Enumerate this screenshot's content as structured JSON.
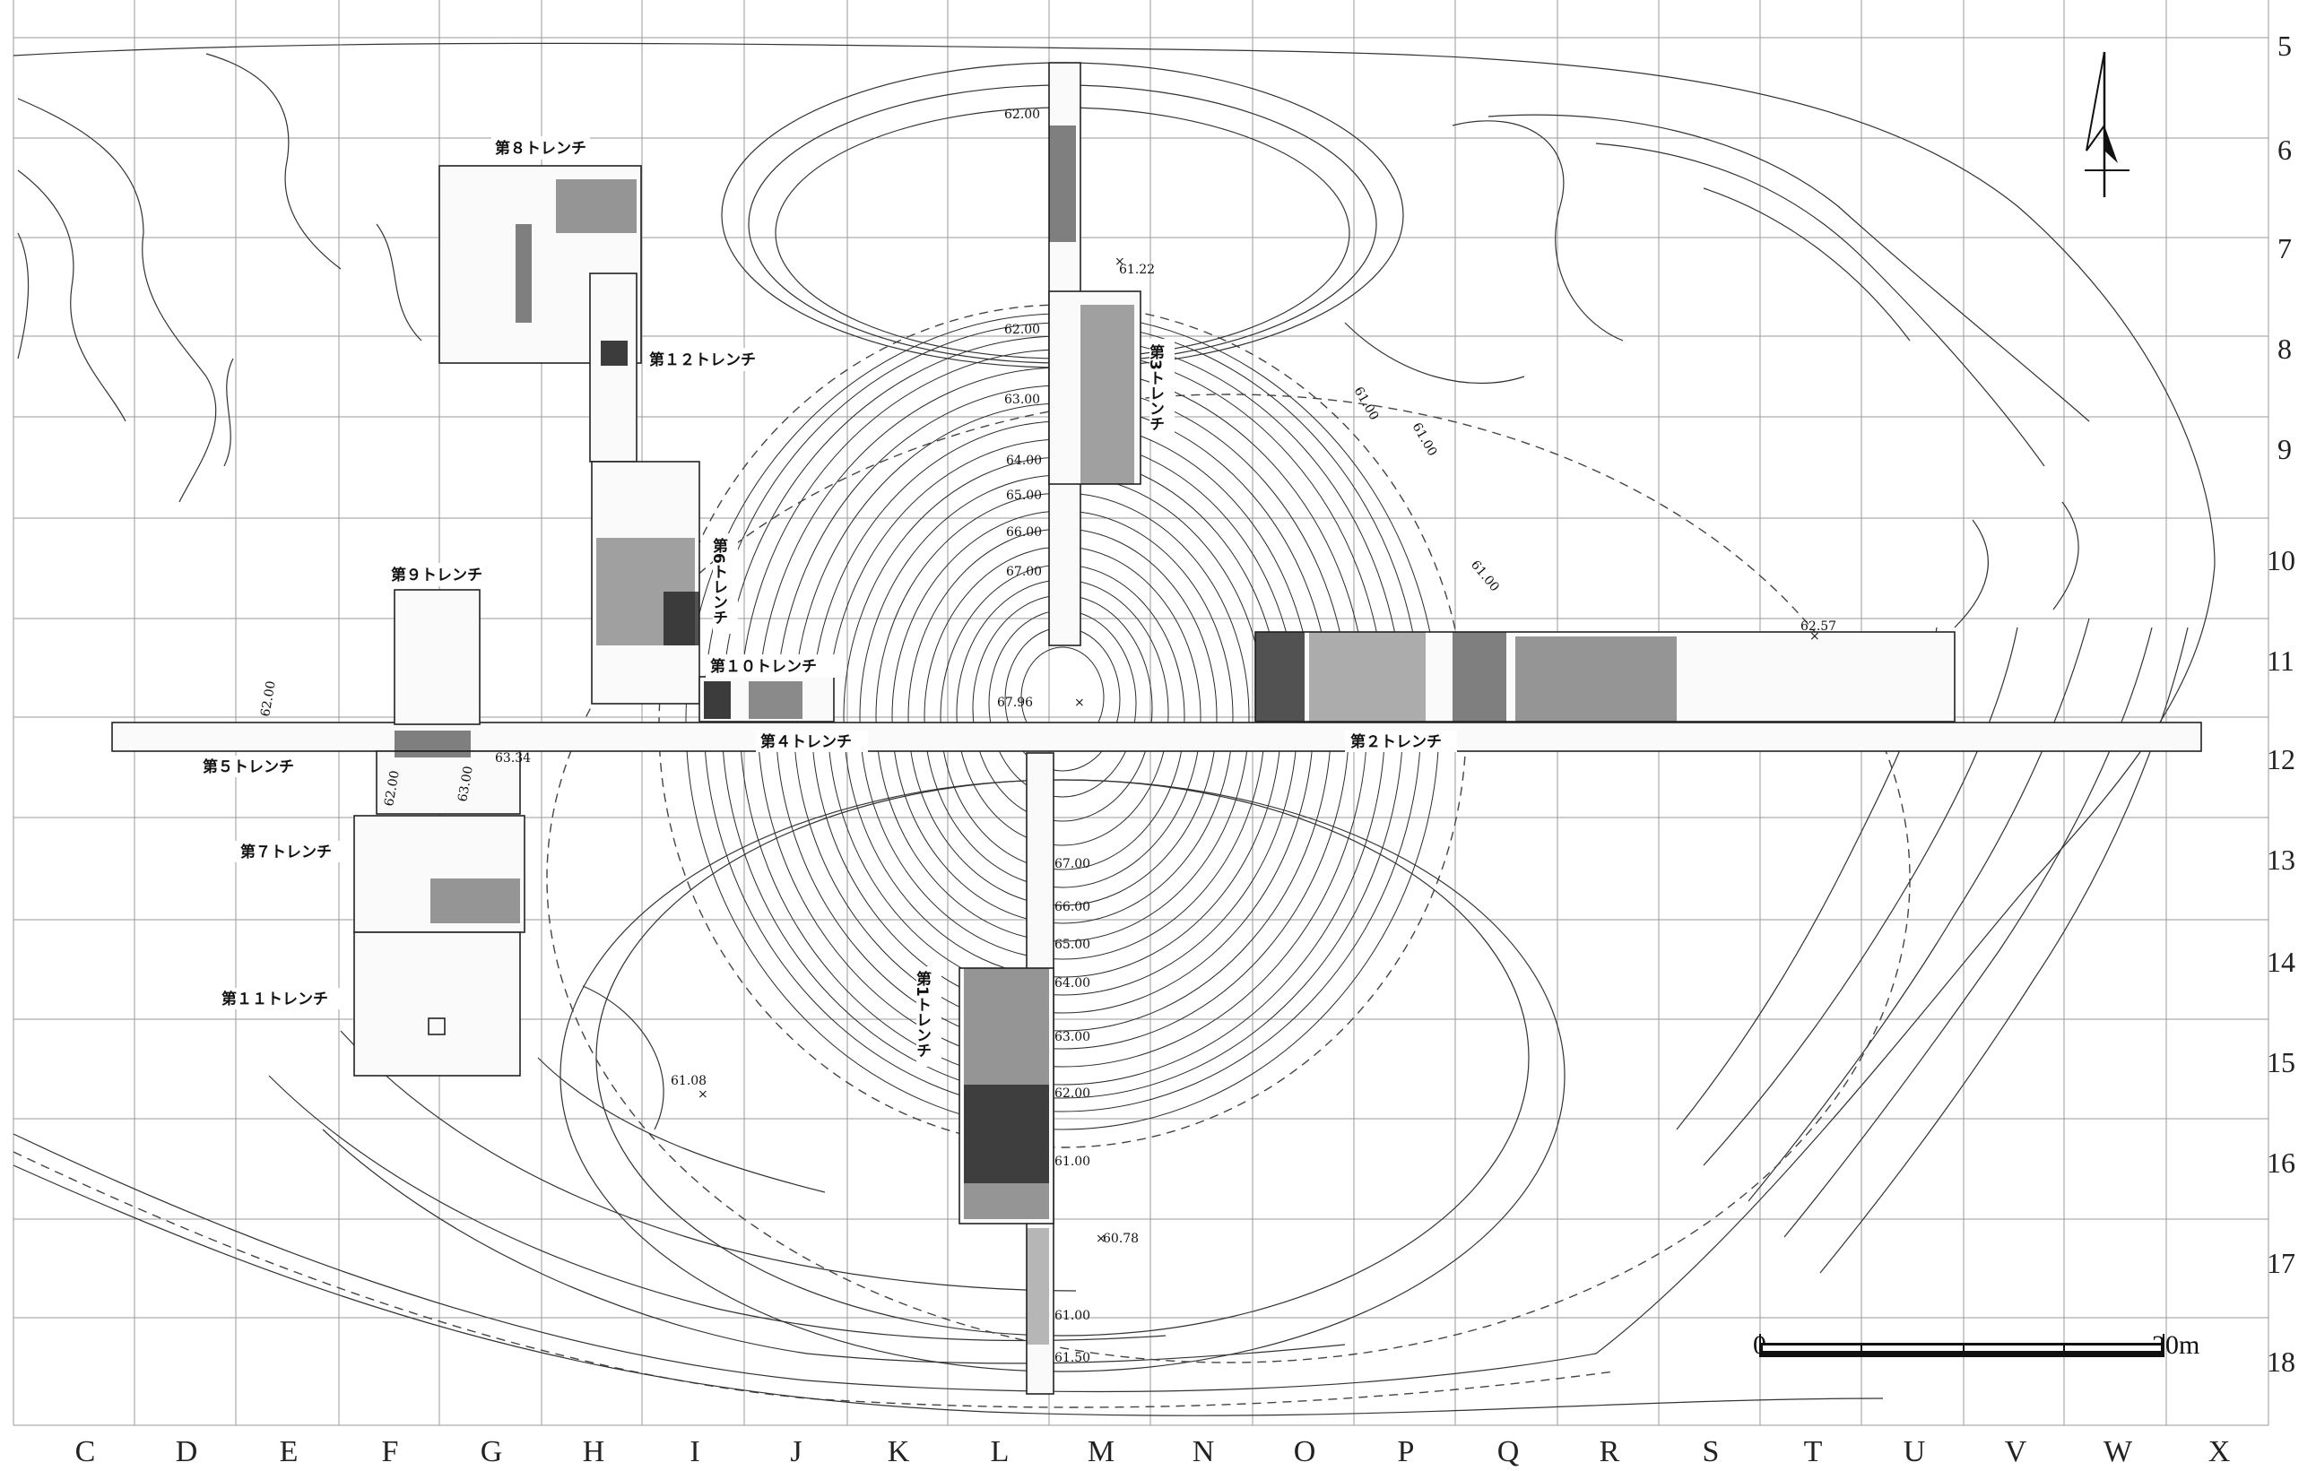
{
  "columns": [
    "C",
    "D",
    "E",
    "F",
    "G",
    "H",
    "I",
    "J",
    "K",
    "L",
    "M",
    "N",
    "O",
    "P",
    "Q",
    "R",
    "S",
    "T",
    "U",
    "V",
    "W",
    "X"
  ],
  "rows": [
    "5",
    "6",
    "7",
    "8",
    "9",
    "10",
    "11",
    "12",
    "13",
    "14",
    "15",
    "16",
    "17",
    "18"
  ],
  "trenches": {
    "t1": "第1トレンチ",
    "t2": "第２トレンチ",
    "t3": "第3トレンチ",
    "t4": "第４トレンチ",
    "t5": "第５トレンチ",
    "t6": "第6トレンチ",
    "t7": "第７トレンチ",
    "t8": "第８トレンチ",
    "t9": "第９トレンチ",
    "t10": "第１０トレンチ",
    "t11": "第１１トレンチ",
    "t12": "第１２トレンチ"
  },
  "elevations": {
    "n_62": "62.00",
    "n_62b": "62.00",
    "n_63": "63.00",
    "n_64": "64.00",
    "n_65": "65.00",
    "n_66": "66.00",
    "n_67": "67.00",
    "n_6122": "61.22",
    "e_61a": "61.00",
    "e_61b": "61.00",
    "e_61c": "61.00",
    "e_6257": "62.57",
    "summit": "67.96",
    "w_62a": "62.00",
    "w_62b": "62.00",
    "w_63": "63.00",
    "w_6334": "63.34",
    "s_67": "67.00",
    "s_66": "66.00",
    "s_65": "65.00",
    "s_64": "64.00",
    "s_63": "63.00",
    "s_62": "62.00",
    "s_61": "61.00",
    "s_61b": "61.00",
    "s_6150": "61.50",
    "s_6078": "60.78",
    "sw_6108": "61.08"
  },
  "scale": {
    "start": "0",
    "end": "20m"
  },
  "north_arrow": "north-arrow-icon"
}
